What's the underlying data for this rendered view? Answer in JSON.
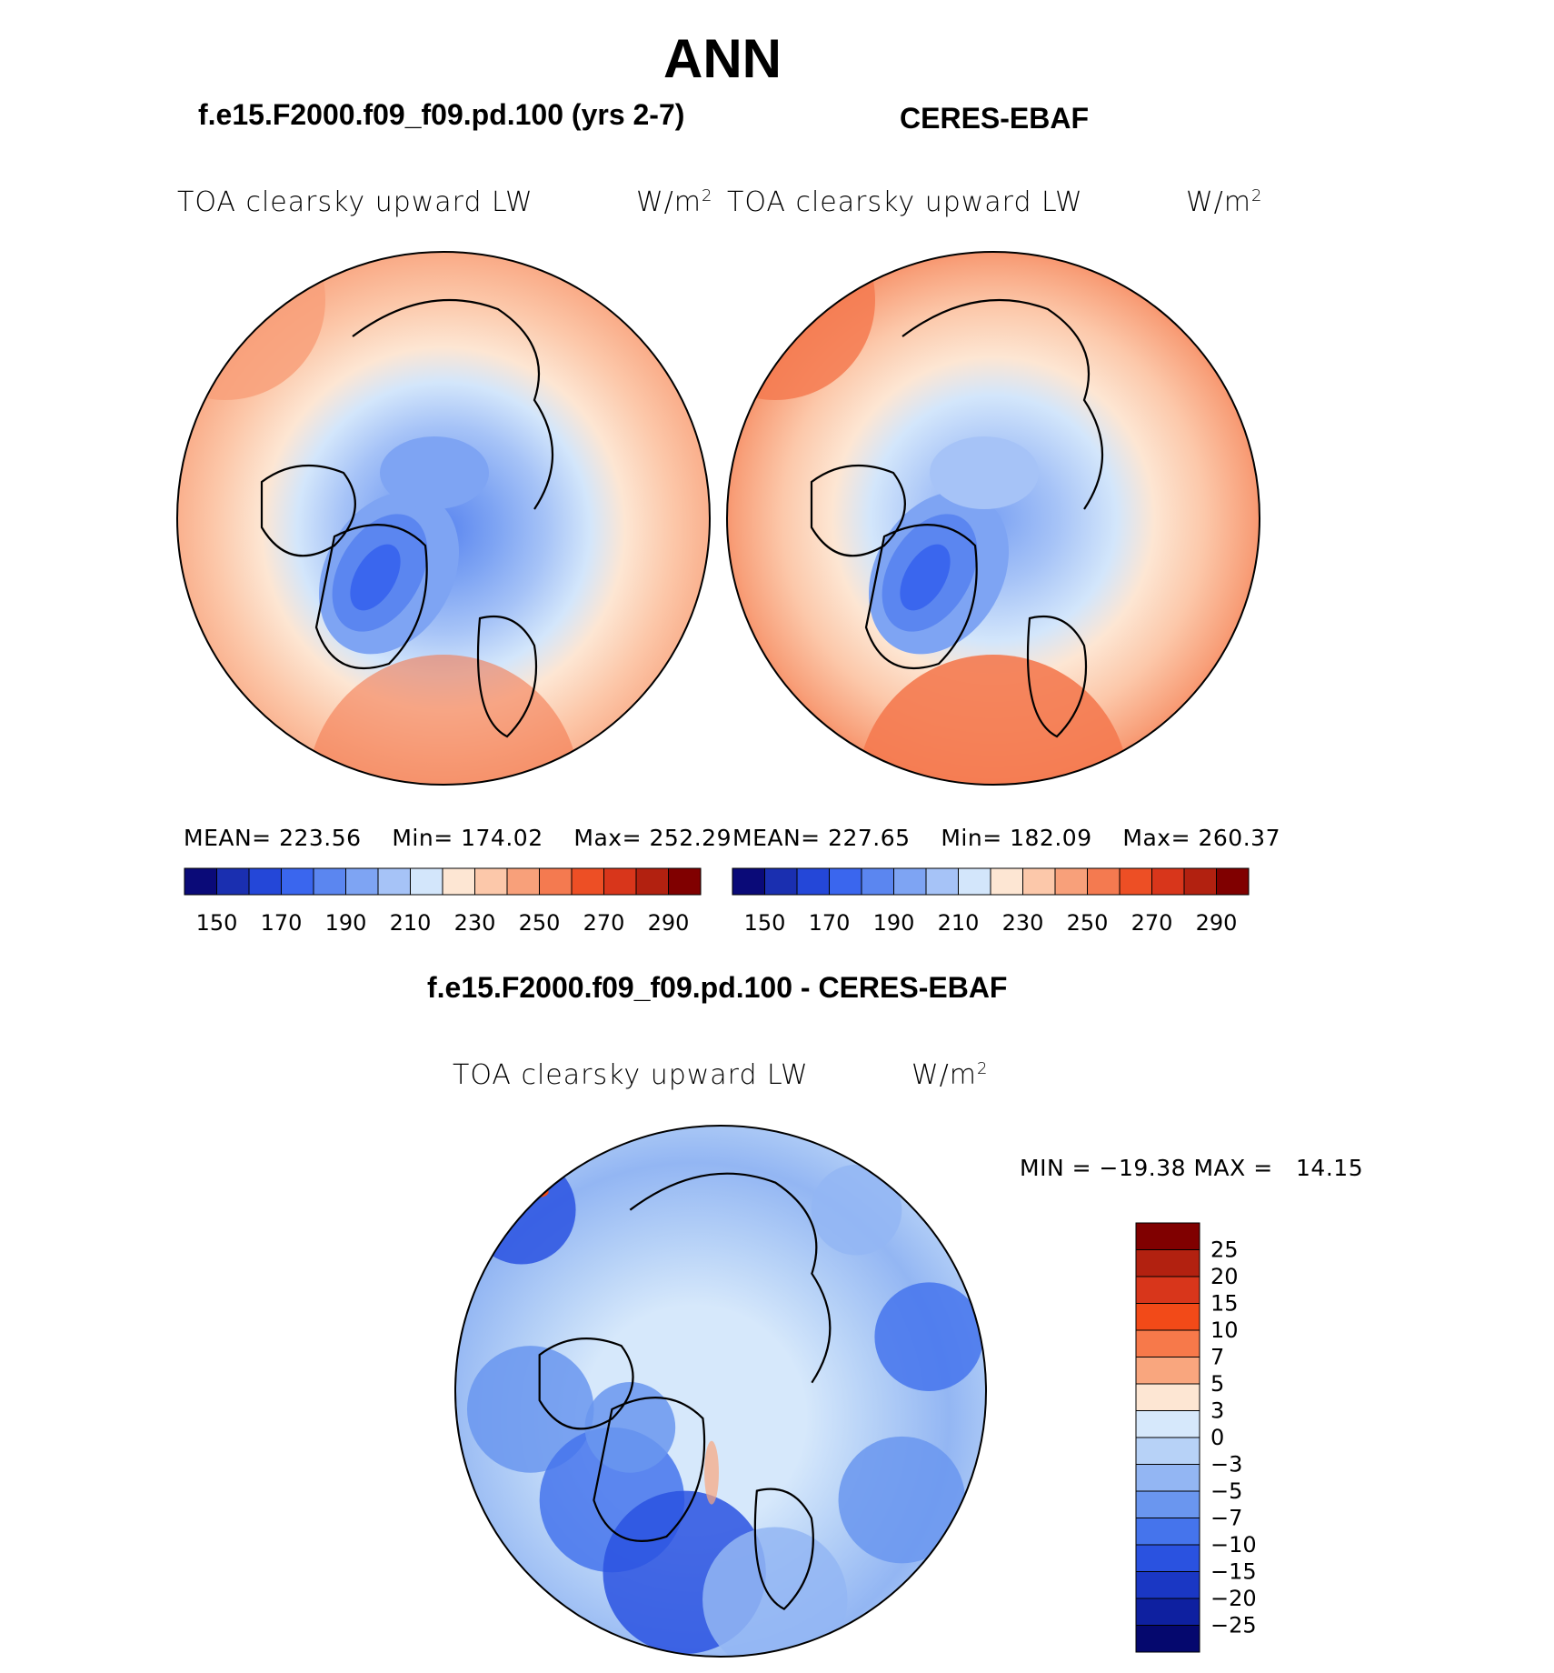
{
  "page": {
    "title": "ANN",
    "model_title": "f.e15.F2000.f09_f09.pd.100 (yrs 2-7)",
    "obs_title": "CERES-EBAF",
    "diff_title": "f.e15.F2000.f09_f09.pd.100 - CERES-EBAF"
  },
  "chart_data": [
    {
      "type": "heatmap",
      "projection": "north-polar-stereographic",
      "title": "TOA clearsky upward LW",
      "units": "W/m",
      "units_exp": "2",
      "stats": {
        "mean_label": "MEAN=",
        "mean": "223.56",
        "min_label": "Min=",
        "min": "174.02",
        "max_label": "Max=",
        "max": "252.29"
      },
      "colorbar": {
        "orientation": "horizontal",
        "levels": [
          150,
          160,
          170,
          180,
          190,
          200,
          210,
          220,
          230,
          240,
          250,
          260,
          270,
          280,
          290
        ],
        "tick_labels": [
          "150",
          "170",
          "190",
          "210",
          "230",
          "250",
          "270",
          "290"
        ],
        "colors": [
          "#0a0a78",
          "#1a2fb0",
          "#2447d8",
          "#3a66ee",
          "#5b86f0",
          "#7ea4f3",
          "#a6c3f7",
          "#d3e6fb",
          "#fde6d3",
          "#fcc8aa",
          "#f8a07a",
          "#f47a50",
          "#ed4f25",
          "#d8361b",
          "#b22110",
          "#800000"
        ]
      }
    },
    {
      "type": "heatmap",
      "projection": "north-polar-stereographic",
      "title": "TOA clearsky upward LW",
      "units": "W/m",
      "units_exp": "2",
      "stats": {
        "mean_label": "MEAN=",
        "mean": "227.65",
        "min_label": "Min=",
        "min": "182.09",
        "max_label": "Max=",
        "max": "260.37"
      },
      "colorbar": {
        "orientation": "horizontal",
        "levels": [
          150,
          160,
          170,
          180,
          190,
          200,
          210,
          220,
          230,
          240,
          250,
          260,
          270,
          280,
          290
        ],
        "tick_labels": [
          "150",
          "170",
          "190",
          "210",
          "230",
          "250",
          "270",
          "290"
        ],
        "colors": [
          "#0a0a78",
          "#1a2fb0",
          "#2447d8",
          "#3a66ee",
          "#5b86f0",
          "#7ea4f3",
          "#a6c3f7",
          "#d3e6fb",
          "#fde6d3",
          "#fcc8aa",
          "#f8a07a",
          "#f47a50",
          "#ed4f25",
          "#d8361b",
          "#b22110",
          "#800000"
        ]
      }
    },
    {
      "type": "heatmap",
      "projection": "north-polar-stereographic",
      "title": "TOA clearsky upward LW",
      "units": "W/m",
      "units_exp": "2",
      "stats": {
        "min_label": "MIN =",
        "min": "−19.38",
        "max_label": "MAX =",
        "max": "14.15"
      },
      "colorbar": {
        "orientation": "vertical",
        "levels": [
          25,
          20,
          15,
          10,
          7,
          5,
          3,
          0,
          -3,
          -5,
          -7,
          -10,
          -15,
          -20,
          -25
        ],
        "tick_labels": [
          "25",
          "20",
          "15",
          "10",
          "7",
          "5",
          "3",
          "0",
          "−3",
          "−5",
          "−7",
          "−10",
          "−15",
          "−20",
          "−25"
        ],
        "colors": [
          "#800000",
          "#b22110",
          "#d8361b",
          "#f24a18",
          "#f7794a",
          "#f9a67e",
          "#fde6d3",
          "#d6e8fb",
          "#b7d2f7",
          "#93b6f3",
          "#6a96ef",
          "#4574ec",
          "#2a52e0",
          "#1a37c4",
          "#0e20a0",
          "#05086e"
        ]
      }
    }
  ]
}
